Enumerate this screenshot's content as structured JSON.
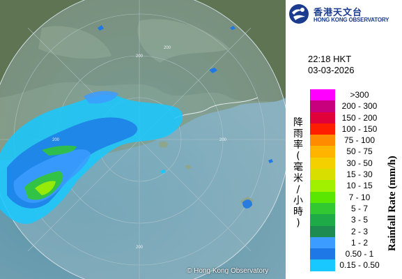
{
  "map": {
    "copyright": "© Hong Kong Observatory",
    "ring_labels": [
      "200",
      "200",
      "200",
      "200",
      "200"
    ]
  },
  "logo": {
    "name_cn": "香港天文台",
    "name_en": "HONG KONG OBSERVATORY",
    "icon": "hko-logo-icon",
    "color": "#1b3b8f"
  },
  "timestamp": {
    "time": "22:18 HKT",
    "date": "03-03-2026"
  },
  "legend": {
    "title_cn": "降雨率(毫米/小時)",
    "title_en": "Rainfall Rate (mm/h)",
    "items": [
      {
        "label": ">300",
        "color": "#ff00ff"
      },
      {
        "label": "200 - 300",
        "color": "#c8007d"
      },
      {
        "label": "150 - 200",
        "color": "#e0003a"
      },
      {
        "label": "100 - 150",
        "color": "#ff1d00"
      },
      {
        "label": "75 - 100",
        "color": "#ff8c00"
      },
      {
        "label": "50 - 75",
        "color": "#ffb400"
      },
      {
        "label": "30 - 50",
        "color": "#f5d000"
      },
      {
        "label": "15 - 30",
        "color": "#d8df00"
      },
      {
        "label": "10 - 15",
        "color": "#a0f000"
      },
      {
        "label": "7 - 10",
        "color": "#5ae600"
      },
      {
        "label": "5 - 7",
        "color": "#32c832"
      },
      {
        "label": "3 - 5",
        "color": "#1eaa46"
      },
      {
        "label": "2 - 3",
        "color": "#1e8c50"
      },
      {
        "label": "1 - 2",
        "color": "#3c9cff"
      },
      {
        "label": "0.50 - 1",
        "color": "#1e78e6"
      },
      {
        "label": "0.15 - 0.50",
        "color": "#18c8ff"
      }
    ]
  }
}
